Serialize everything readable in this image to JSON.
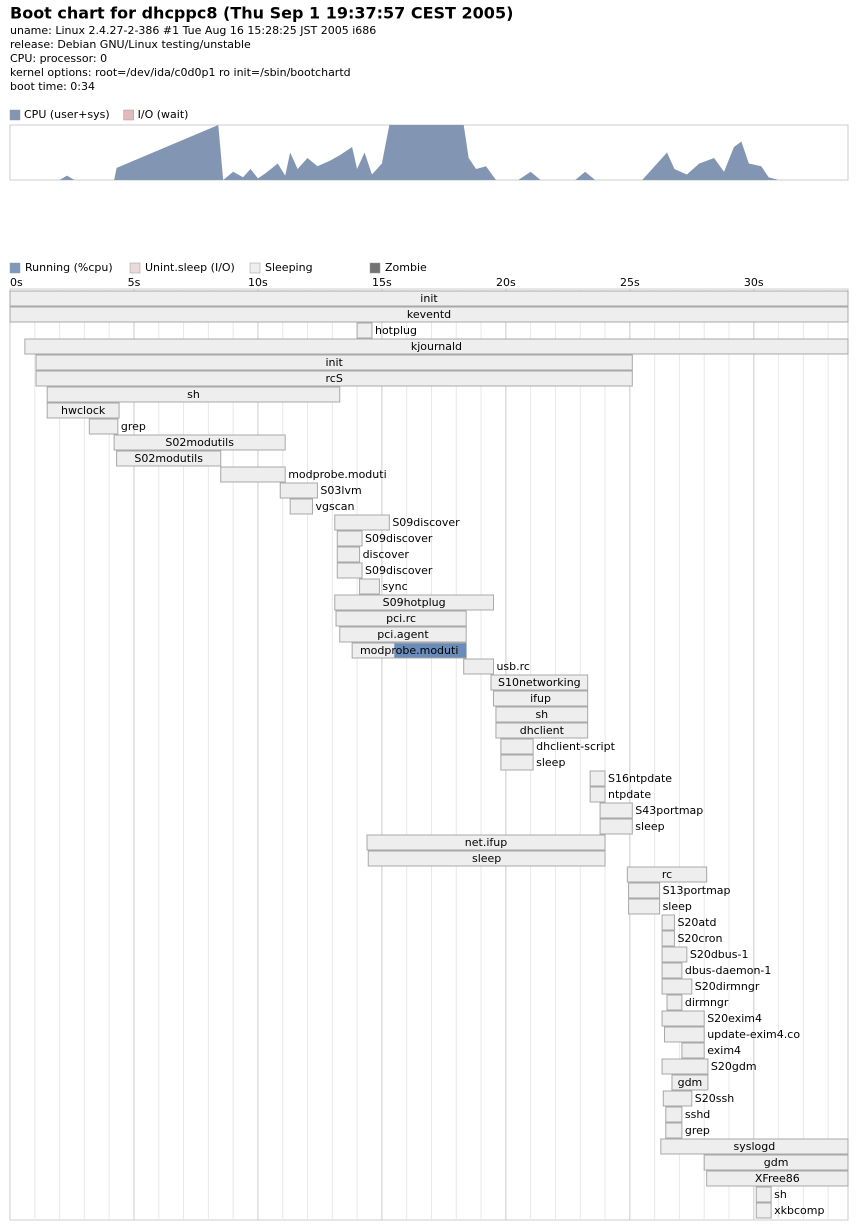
{
  "header": {
    "title": "Boot chart for dhcppc8 (Thu Sep  1 19:37:57 CEST 2005)",
    "lines": [
      "uname: Linux 2.4.27-2-386 #1 Tue Aug 16 15:28:25 JST 2005 i686",
      "release: Debian GNU/Linux testing/unstable",
      "CPU: processor: 0",
      "kernel options: root=/dev/ida/c0d0p1 ro init=/sbin/bootchartd",
      "boot time: 0:34"
    ]
  },
  "cpu_chart": {
    "type": "area",
    "legend": [
      {
        "name": "CPU (user+sys)",
        "color": "#8296b3"
      },
      {
        "name": "I/O (wait)",
        "color": "#e2baba"
      }
    ],
    "xlim": [
      0,
      33.8
    ],
    "ylim": [
      0,
      100
    ],
    "x": [
      0,
      2.0,
      2.3,
      2.6,
      4.2,
      4.3,
      8.4,
      8.6,
      9.0,
      9.4,
      9.7,
      10.0,
      10.3,
      10.8,
      11.1,
      11.3,
      11.6,
      12.0,
      12.4,
      12.9,
      13.3,
      13.8,
      14.0,
      14.3,
      14.6,
      15.0,
      15.3,
      18.3,
      18.5,
      18.8,
      19.2,
      19.6,
      20.5,
      21.0,
      21.4,
      22.8,
      23.2,
      23.6,
      25.5,
      26.2,
      26.5,
      26.8,
      27.3,
      27.8,
      28.4,
      28.8,
      29.2,
      29.5,
      29.8,
      30.3,
      30.6,
      31.0,
      33.8
    ],
    "values": [
      0,
      0,
      8,
      0,
      0,
      22,
      100,
      0,
      15,
      5,
      20,
      3,
      12,
      30,
      8,
      50,
      20,
      40,
      25,
      35,
      45,
      60,
      20,
      50,
      10,
      30,
      100,
      100,
      40,
      20,
      25,
      0,
      0,
      15,
      0,
      0,
      15,
      0,
      0,
      35,
      50,
      20,
      10,
      30,
      40,
      15,
      60,
      70,
      30,
      25,
      5,
      0,
      0
    ]
  },
  "process_chart": {
    "legend": [
      {
        "name": "Running (%cpu)",
        "color": "#7f98bd"
      },
      {
        "name": "Unint.sleep (I/O)",
        "color": "#ecdada"
      },
      {
        "name": "Sleeping",
        "color": "#eeeeee"
      },
      {
        "name": "Zombie",
        "color": "#737373"
      }
    ],
    "xlim": [
      0,
      33.8
    ],
    "xticks": [
      {
        "value": 0,
        "label": "0s"
      },
      {
        "value": 5,
        "label": "5s"
      },
      {
        "value": 10,
        "label": "10s"
      },
      {
        "value": 15,
        "label": "15s"
      },
      {
        "value": 20,
        "label": "20s"
      },
      {
        "value": 25,
        "label": "25s"
      },
      {
        "value": 30,
        "label": "30s"
      }
    ],
    "grid_lines": [
      1,
      2,
      3,
      4,
      6,
      7,
      8,
      9,
      11,
      12,
      13,
      14,
      16,
      17,
      18,
      19,
      21,
      22,
      23,
      24,
      26,
      27,
      28,
      29,
      31,
      32,
      33
    ],
    "processes": [
      {
        "name": "init",
        "start": 0,
        "end": 33.8
      },
      {
        "name": "keventd",
        "start": 0,
        "end": 33.8
      },
      {
        "name": "hotplug",
        "start": 14.0,
        "end": 14.6
      },
      {
        "name": "kjournald",
        "start": 0.6,
        "end": 33.8
      },
      {
        "name": "init",
        "start": 1.05,
        "end": 25.1
      },
      {
        "name": "rcS",
        "start": 1.05,
        "end": 25.1
      },
      {
        "name": "sh",
        "start": 1.5,
        "end": 13.3
      },
      {
        "name": "hwclock",
        "start": 1.5,
        "end": 4.4
      },
      {
        "name": "grep",
        "start": 3.2,
        "end": 4.35
      },
      {
        "name": "S02modutils",
        "start": 4.2,
        "end": 11.1
      },
      {
        "name": "S02modutils",
        "start": 4.3,
        "end": 8.5
      },
      {
        "name": "modprobe.moduti",
        "start": 8.5,
        "end": 11.1
      },
      {
        "name": "S03lvm",
        "start": 10.9,
        "end": 12.4
      },
      {
        "name": "vgscan",
        "start": 11.3,
        "end": 12.2
      },
      {
        "name": "S09discover",
        "start": 13.1,
        "end": 15.3
      },
      {
        "name": "S09discover",
        "start": 13.2,
        "end": 14.2
      },
      {
        "name": "discover",
        "start": 13.2,
        "end": 14.1
      },
      {
        "name": "S09discover",
        "start": 13.2,
        "end": 14.2
      },
      {
        "name": "sync",
        "start": 14.1,
        "end": 14.9
      },
      {
        "name": "S09hotplug",
        "start": 13.1,
        "end": 19.5
      },
      {
        "name": "pci.rc",
        "start": 13.15,
        "end": 18.4
      },
      {
        "name": "pci.agent",
        "start": 13.3,
        "end": 18.4
      },
      {
        "name": "modprobe.moduti",
        "start": 13.8,
        "end": 18.4,
        "running": [
          15.5,
          18.4
        ]
      },
      {
        "name": "usb.rc",
        "start": 18.3,
        "end": 19.5
      },
      {
        "name": "S10networking",
        "start": 19.4,
        "end": 23.3
      },
      {
        "name": "ifup",
        "start": 19.5,
        "end": 23.3
      },
      {
        "name": "sh",
        "start": 19.6,
        "end": 23.3
      },
      {
        "name": "dhclient",
        "start": 19.6,
        "end": 23.3
      },
      {
        "name": "dhclient-script",
        "start": 19.8,
        "end": 21.1
      },
      {
        "name": "sleep",
        "start": 19.8,
        "end": 21.1
      },
      {
        "name": "S16ntpdate",
        "start": 23.4,
        "end": 24.0
      },
      {
        "name": "ntpdate",
        "start": 23.4,
        "end": 24.0
      },
      {
        "name": "S43portmap",
        "start": 23.8,
        "end": 25.1
      },
      {
        "name": "sleep",
        "start": 23.8,
        "end": 25.1
      },
      {
        "name": "net.ifup",
        "start": 14.4,
        "end": 24.0
      },
      {
        "name": "sleep",
        "start": 14.45,
        "end": 24.0
      },
      {
        "name": "rc",
        "start": 24.9,
        "end": 28.1
      },
      {
        "name": "S13portmap",
        "start": 24.95,
        "end": 26.2
      },
      {
        "name": "sleep",
        "start": 24.95,
        "end": 26.2
      },
      {
        "name": "S20atd",
        "start": 26.3,
        "end": 26.8
      },
      {
        "name": "S20cron",
        "start": 26.3,
        "end": 26.8
      },
      {
        "name": "S20dbus-1",
        "start": 26.3,
        "end": 27.3
      },
      {
        "name": "dbus-daemon-1",
        "start": 26.3,
        "end": 27.1
      },
      {
        "name": "S20dirmngr",
        "start": 26.3,
        "end": 27.5
      },
      {
        "name": "dirmngr",
        "start": 26.5,
        "end": 27.1
      },
      {
        "name": "S20exim4",
        "start": 26.3,
        "end": 28.0
      },
      {
        "name": "update-exim4.co",
        "start": 26.4,
        "end": 28.0
      },
      {
        "name": "exim4",
        "start": 27.1,
        "end": 28.0
      },
      {
        "name": "S20gdm",
        "start": 26.3,
        "end": 28.15
      },
      {
        "name": "gdm",
        "start": 26.7,
        "end": 28.15
      },
      {
        "name": "S20ssh",
        "start": 26.35,
        "end": 27.5
      },
      {
        "name": "sshd",
        "start": 26.45,
        "end": 27.1
      },
      {
        "name": "grep",
        "start": 26.45,
        "end": 27.1
      },
      {
        "name": "syslogd",
        "start": 26.25,
        "end": 33.8
      },
      {
        "name": "gdm",
        "start": 28.0,
        "end": 33.8
      },
      {
        "name": "XFree86",
        "start": 28.1,
        "end": 33.8
      },
      {
        "name": "sh",
        "start": 30.1,
        "end": 30.7
      },
      {
        "name": "xkbcomp",
        "start": 30.1,
        "end": 30.7
      }
    ]
  }
}
